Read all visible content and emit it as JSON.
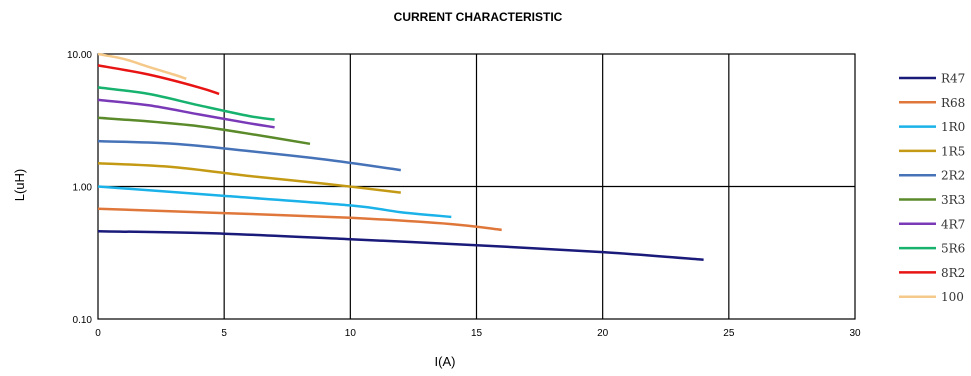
{
  "chart_data": {
    "type": "line",
    "title": "CURRENT CHARACTERISTIC",
    "xlabel": "I(A)",
    "ylabel": "L(uH)",
    "xlim": [
      0,
      30
    ],
    "ylim": [
      0.1,
      10
    ],
    "yscale": "log",
    "grid": true,
    "legend_position": "right",
    "x_ticks": [
      "0",
      "5",
      "10",
      "15",
      "20",
      "25",
      "30"
    ],
    "y_ticks": [
      "0.10",
      "1.00",
      "10.00"
    ],
    "series": [
      {
        "name": "R47",
        "color": "#1a1a7a",
        "x": [
          0,
          5,
          10,
          15,
          20,
          24
        ],
        "y": [
          0.46,
          0.44,
          0.4,
          0.36,
          0.32,
          0.28
        ]
      },
      {
        "name": "R68",
        "color": "#e0773a",
        "x": [
          0,
          5,
          10,
          14,
          16
        ],
        "y": [
          0.68,
          0.63,
          0.58,
          0.52,
          0.47
        ]
      },
      {
        "name": "1R0",
        "color": "#1ab2e8",
        "x": [
          0,
          5,
          10,
          12,
          14
        ],
        "y": [
          1.0,
          0.85,
          0.72,
          0.64,
          0.59
        ]
      },
      {
        "name": "1R5",
        "color": "#c49a14",
        "x": [
          0,
          3,
          6,
          9,
          12
        ],
        "y": [
          1.5,
          1.4,
          1.2,
          1.05,
          0.9
        ]
      },
      {
        "name": "2R2",
        "color": "#4672b8",
        "x": [
          0,
          3,
          6,
          9,
          12
        ],
        "y": [
          2.2,
          2.1,
          1.85,
          1.6,
          1.33
        ]
      },
      {
        "name": "3R3",
        "color": "#5a8a2a",
        "x": [
          0,
          2,
          4,
          6,
          8.4
        ],
        "y": [
          3.3,
          3.1,
          2.85,
          2.5,
          2.1
        ]
      },
      {
        "name": "4R7",
        "color": "#7a3ab8",
        "x": [
          0,
          2,
          4,
          6,
          7
        ],
        "y": [
          4.5,
          4.1,
          3.5,
          3.0,
          2.8
        ]
      },
      {
        "name": "5R6",
        "color": "#16b26e",
        "x": [
          0,
          2,
          4,
          6,
          7
        ],
        "y": [
          5.6,
          5.0,
          4.1,
          3.4,
          3.2
        ]
      },
      {
        "name": "8R2",
        "color": "#e81414",
        "x": [
          0,
          2,
          4,
          4.8
        ],
        "y": [
          8.2,
          7.0,
          5.6,
          5.0
        ]
      },
      {
        "name": "100",
        "color": "#f5c98a",
        "x": [
          0,
          1,
          2,
          3,
          3.5
        ],
        "y": [
          10.0,
          9.2,
          8.0,
          7.0,
          6.5
        ]
      }
    ]
  }
}
